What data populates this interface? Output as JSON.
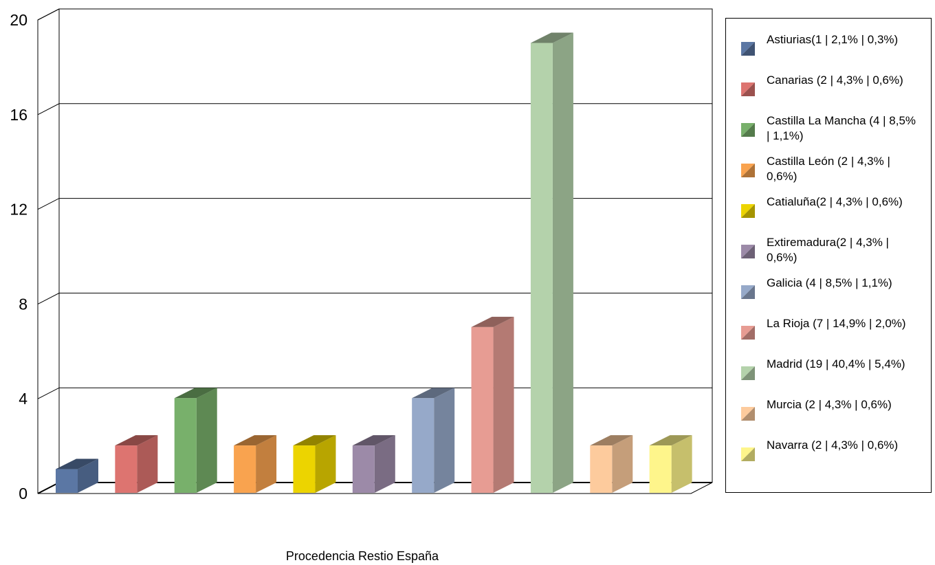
{
  "chart_data": {
    "type": "bar",
    "title": "",
    "xlabel": "Procedencia Restio España",
    "ylabel": "",
    "ylim": [
      0,
      20
    ],
    "yticks": [
      0,
      4,
      8,
      12,
      16,
      20
    ],
    "grid": true,
    "legend_position": "right",
    "categories": [
      "Astiurias(1 | 2,1% | 0,3%)",
      "Canarias (2 | 4,3% | 0,6%)",
      "Castilla La Mancha (4 | 8,5% | 1,1%)",
      "Castilla León (2 | 4,3% | 0,6%)",
      "Catialuña(2 | 4,3% | 0,6%)",
      "Extiremadura(2 | 4,3% | 0,6%)",
      "Galicia (4 | 8,5% | 1,1%)",
      "La Rioja (7 | 14,9% | 2,0%)",
      "Madrid (19 | 40,4% | 5,4%)",
      "Murcia (2 | 4,3% | 0,6%)",
      "Navarra (2 | 4,3% | 0,6%)"
    ],
    "values": [
      1,
      2,
      4,
      2,
      2,
      2,
      4,
      7,
      19,
      2,
      2
    ],
    "colors": [
      "#5b77a4",
      "#dd7470",
      "#78b06b",
      "#f9a34f",
      "#ecd400",
      "#9c8aa8",
      "#96a9c9",
      "#e79c93",
      "#b4d2ab",
      "#fdcb9d",
      "#fef58b"
    ]
  }
}
